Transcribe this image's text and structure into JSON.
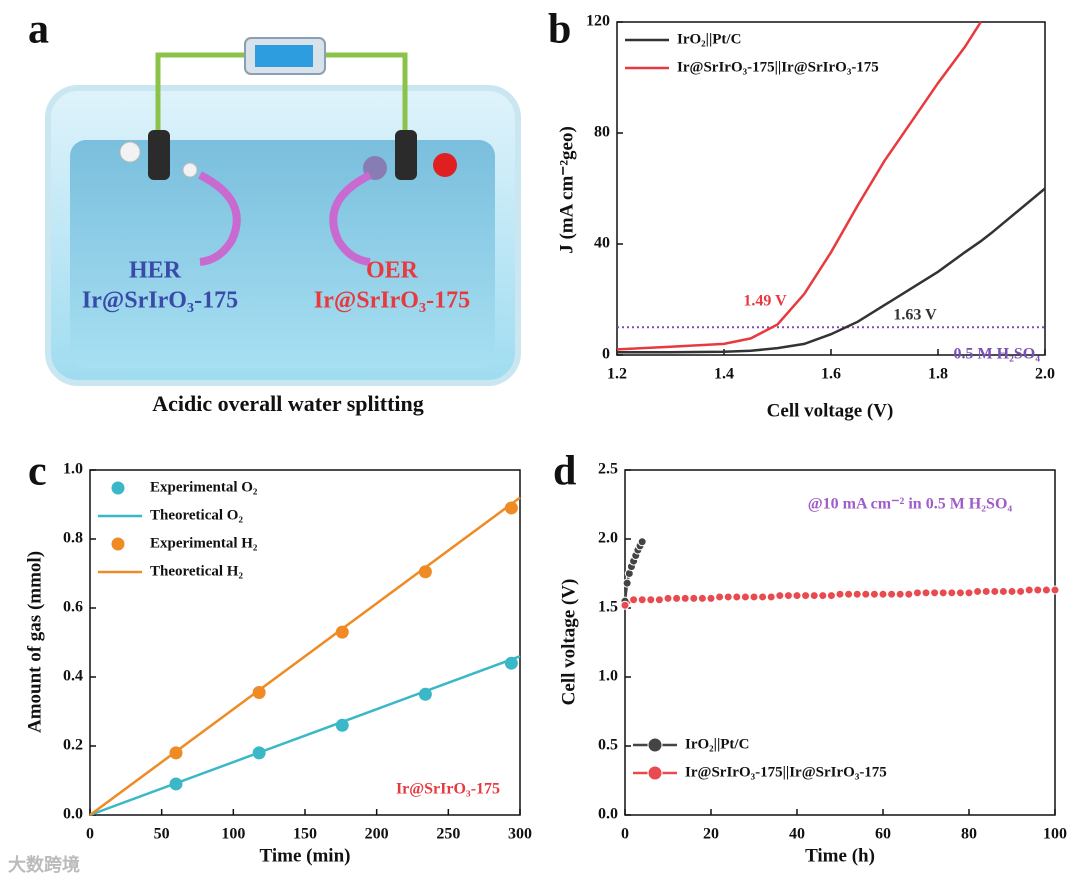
{
  "panel_labels": [
    "a",
    "b",
    "c",
    "d"
  ],
  "illustration": {
    "her_label": "HER",
    "her_catalyst": "Ir@SrIrO₃-175",
    "oer_label": "OER",
    "oer_catalyst": "Ir@SrIrO₃-175",
    "caption": "Acidic overall water splitting"
  },
  "watermark": "大数跨境",
  "chart_data": [
    {
      "type": "line",
      "x_label": "Cell voltage (V)",
      "y_label": "J (mA cm⁻²geo)",
      "xlim": [
        1.2,
        2.0
      ],
      "xticks": [
        1.2,
        1.4,
        1.6,
        1.8,
        {
          "value": 2.0,
          "label": "2.0"
        }
      ],
      "ylim": [
        0,
        120
      ],
      "yticks": [
        0,
        40,
        80,
        120
      ],
      "legend": "upper left",
      "x": [
        1.2,
        1.3,
        1.4,
        1.45,
        1.5,
        1.55,
        1.6,
        1.65,
        1.7,
        1.75,
        1.8,
        1.85,
        1.88,
        1.9,
        2.0
      ],
      "series": [
        {
          "name": "IrO₂||Pt/C",
          "color": "#333333",
          "style": "line",
          "values": [
            1,
            1,
            1.2,
            1.5,
            2.5,
            4,
            7.5,
            12,
            18,
            24,
            30,
            37,
            41,
            44,
            60
          ]
        },
        {
          "name": "Ir@SrIrO₃-175||Ir@SrIrO₃-175",
          "color": "#e8393f",
          "style": "line",
          "values": [
            2,
            3,
            4,
            6,
            11,
            22,
            37,
            54,
            70,
            84,
            98,
            111,
            120,
            null,
            null
          ]
        }
      ],
      "hline": 10,
      "hline_color": "#7a4fb5",
      "annotations": [
        {
          "text": "1.49 V",
          "color": "#e8393f"
        },
        {
          "text": "1.63 V",
          "color": "#333333"
        },
        {
          "text": "0.5 M H₂SO₄",
          "color": "#7a4fb5"
        }
      ]
    },
    {
      "type": "line",
      "x_label": "Time (min)",
      "y_label": "Amount of gas (mmol)",
      "xlim": [
        0,
        300
      ],
      "xticks": [
        0,
        50,
        100,
        150,
        200,
        250,
        300
      ],
      "ylim": [
        0,
        1.0
      ],
      "yticks": [
        {
          "value": 0,
          "label": "0.0"
        },
        0.2,
        0.4,
        0.6,
        0.8,
        {
          "value": 1.0,
          "label": "1.0"
        }
      ],
      "legend": "upper left",
      "series": [
        {
          "name": "Experimental O₂",
          "color": "#3bb8c8",
          "style": "markers",
          "x": [
            60,
            118,
            176,
            234,
            294
          ],
          "values": [
            0.09,
            0.18,
            0.26,
            0.35,
            0.44
          ]
        },
        {
          "name": "Theoretical O₂",
          "color": "#3bb8c8",
          "style": "line",
          "x": [
            0,
            300
          ],
          "values": [
            0,
            0.46
          ]
        },
        {
          "name": "Experimental H₂",
          "color": "#f08a24",
          "style": "markers",
          "x": [
            60,
            118,
            176,
            234,
            294
          ],
          "values": [
            0.18,
            0.355,
            0.53,
            0.705,
            0.89
          ]
        },
        {
          "name": "Theoretical H₂",
          "color": "#f08a24",
          "style": "line",
          "x": [
            0,
            300
          ],
          "values": [
            0,
            0.92
          ]
        }
      ],
      "annotations": [
        {
          "text": "Ir@SrIrO₃-175",
          "color": "#e8393f"
        }
      ]
    },
    {
      "type": "line",
      "x_label": "Time (h)",
      "y_label": "Cell voltage (V)",
      "xlim": [
        0,
        100
      ],
      "xticks": [
        0,
        20,
        40,
        60,
        80,
        100
      ],
      "ylim": [
        0,
        2.5
      ],
      "yticks": [
        {
          "value": 0,
          "label": "0.0"
        },
        0.5,
        {
          "value": 1.0,
          "label": "1.0"
        },
        1.5,
        {
          "value": 2.0,
          "label": "2.0"
        },
        2.5
      ],
      "legend": "lower left",
      "series": [
        {
          "name": "IrO₂||Pt/C",
          "color": "#444444",
          "style": "line+markers",
          "x": [
            0,
            0.5,
            1,
            1.5,
            2,
            2.5,
            3,
            3.5,
            4
          ],
          "values": [
            1.55,
            1.68,
            1.75,
            1.8,
            1.84,
            1.88,
            1.92,
            1.95,
            1.98
          ]
        },
        {
          "name": "Ir@SrIrO₃-175||Ir@SrIrO₃-175",
          "color": "#e84a4f",
          "style": "line+markers",
          "x": [
            0,
            2,
            4,
            6,
            8,
            10,
            12,
            14,
            16,
            18,
            20,
            22,
            24,
            26,
            28,
            30,
            32,
            34,
            36,
            38,
            40,
            42,
            44,
            46,
            48,
            50,
            52,
            54,
            56,
            58,
            60,
            62,
            64,
            66,
            68,
            70,
            72,
            74,
            76,
            78,
            80,
            82,
            84,
            86,
            88,
            90,
            92,
            94,
            96,
            98,
            100
          ],
          "values": [
            1.52,
            1.56,
            1.56,
            1.56,
            1.56,
            1.57,
            1.57,
            1.57,
            1.57,
            1.57,
            1.57,
            1.58,
            1.58,
            1.58,
            1.58,
            1.58,
            1.58,
            1.58,
            1.59,
            1.59,
            1.59,
            1.59,
            1.59,
            1.59,
            1.59,
            1.6,
            1.6,
            1.6,
            1.6,
            1.6,
            1.6,
            1.6,
            1.6,
            1.6,
            1.61,
            1.61,
            1.61,
            1.61,
            1.61,
            1.61,
            1.61,
            1.62,
            1.62,
            1.62,
            1.62,
            1.62,
            1.62,
            1.63,
            1.63,
            1.63,
            1.63
          ]
        }
      ],
      "annotations": [
        {
          "text": "@10 mA cm⁻² in  0.5 M H₂SO₄",
          "color": "#a05cc8"
        }
      ]
    }
  ]
}
